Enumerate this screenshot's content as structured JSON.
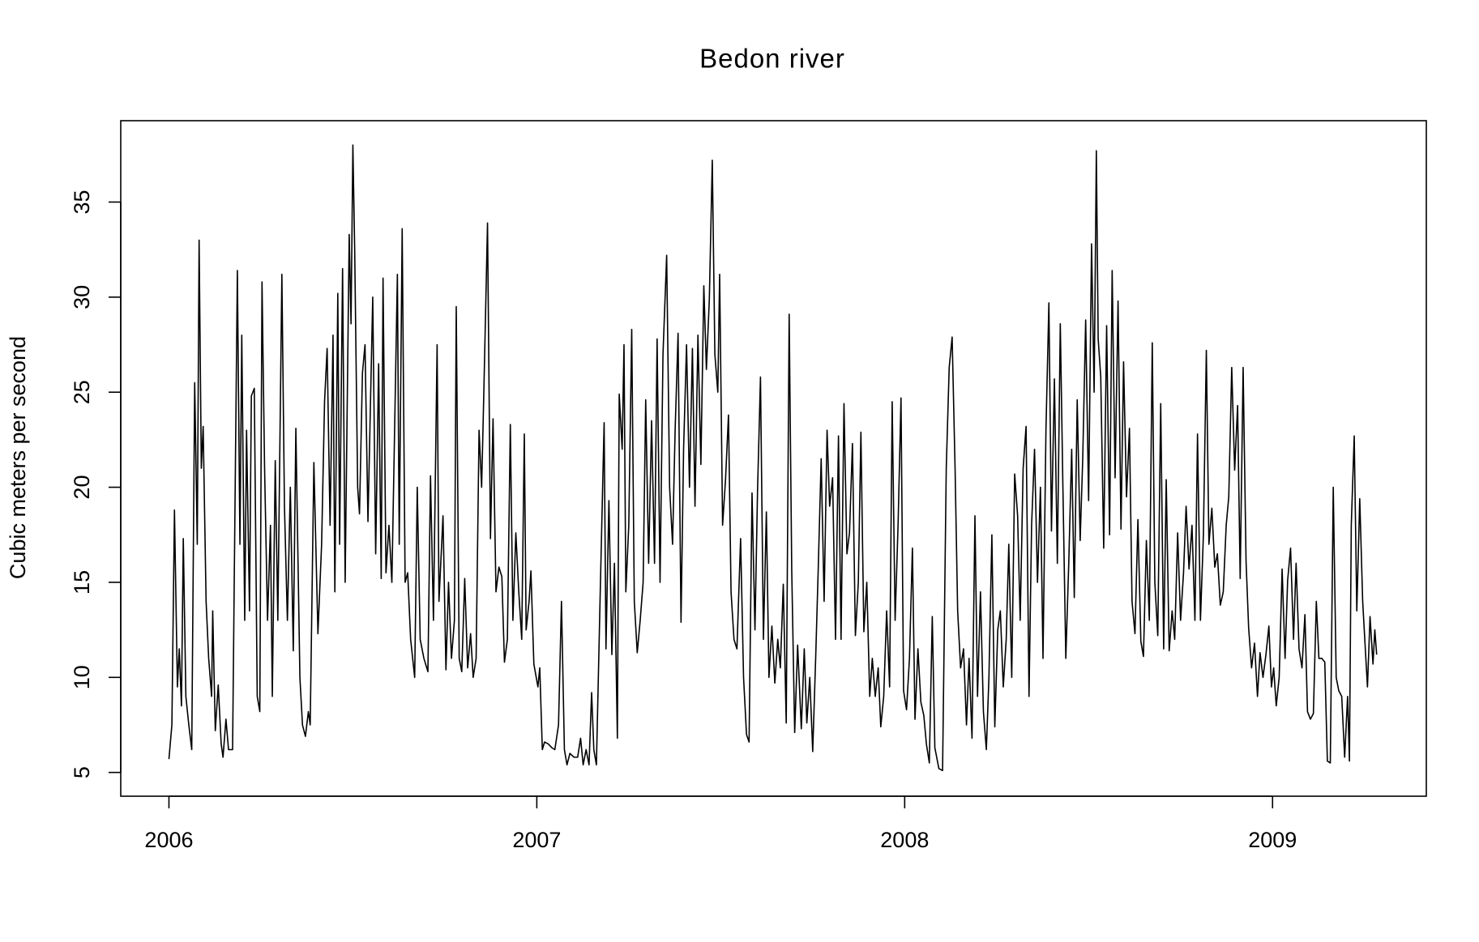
{
  "chart_data": {
    "type": "line",
    "title": "Bedon river",
    "y_label": "Cubic meters per second",
    "color": "#000000",
    "xlim": [
      2005.869,
      2009.418
    ],
    "ylim": [
      3.75,
      39.28
    ],
    "xticks": [
      2006,
      2007,
      2008,
      2009
    ],
    "yticks": [
      5,
      10,
      15,
      20,
      25,
      30,
      35
    ],
    "x": [
      2006.0,
      2006.008,
      2006.015,
      2006.023,
      2006.028,
      2006.034,
      2006.039,
      2006.046,
      2006.054,
      2006.062,
      2006.07,
      2006.077,
      2006.082,
      2006.088,
      2006.093,
      2006.101,
      2006.108,
      2006.116,
      2006.119,
      2006.126,
      2006.134,
      2006.142,
      2006.147,
      2006.155,
      2006.162,
      2006.173,
      2006.178,
      2006.186,
      2006.193,
      2006.198,
      2006.206,
      2006.211,
      2006.219,
      2006.224,
      2006.232,
      2006.24,
      2006.247,
      2006.253,
      2006.26,
      2006.268,
      2006.276,
      2006.281,
      2006.289,
      2006.296,
      2006.307,
      2006.314,
      2006.322,
      2006.33,
      2006.338,
      2006.345,
      2006.356,
      2006.363,
      2006.371,
      2006.379,
      2006.384,
      2006.394,
      2006.405,
      2006.415,
      2006.423,
      2006.43,
      2006.438,
      2006.446,
      2006.451,
      2006.459,
      2006.464,
      2006.472,
      2006.479,
      2006.49,
      2006.495,
      2006.5,
      2006.505,
      2006.513,
      2006.518,
      2006.526,
      2006.533,
      2006.541,
      2006.554,
      2006.562,
      2006.57,
      2006.577,
      2006.582,
      2006.59,
      2006.598,
      2006.606,
      2006.621,
      2006.626,
      2006.634,
      2006.642,
      2006.649,
      2006.657,
      2006.668,
      2006.675,
      2006.683,
      2006.693,
      2006.704,
      2006.711,
      2006.719,
      2006.729,
      2006.734,
      2006.745,
      2006.753,
      2006.76,
      2006.768,
      2006.776,
      2006.781,
      2006.789,
      2006.796,
      2006.804,
      2006.812,
      2006.82,
      2006.827,
      2006.835,
      2006.843,
      2006.85,
      2006.856,
      2006.866,
      2006.874,
      2006.881,
      2006.889,
      2006.897,
      2006.905,
      2006.912,
      2006.92,
      2006.928,
      2006.935,
      2006.943,
      2006.951,
      2006.959,
      2006.966,
      2006.971,
      2006.979,
      2006.984,
      2006.992,
      2007.003,
      2007.008,
      2007.015,
      2007.021,
      2007.031,
      2007.041,
      2007.049,
      2007.059,
      2007.067,
      2007.075,
      2007.082,
      2007.09,
      2007.101,
      2007.111,
      2007.119,
      2007.126,
      2007.134,
      2007.142,
      2007.149,
      2007.155,
      2007.162,
      2007.173,
      2007.183,
      2007.188,
      2007.196,
      2007.204,
      2007.211,
      2007.219,
      2007.224,
      2007.232,
      2007.237,
      2007.242,
      2007.25,
      2007.258,
      2007.265,
      2007.273,
      2007.281,
      2007.289,
      2007.296,
      2007.304,
      2007.312,
      2007.32,
      2007.327,
      2007.335,
      2007.343,
      2007.353,
      2007.361,
      2007.369,
      2007.376,
      2007.384,
      2007.392,
      2007.399,
      2007.407,
      2007.415,
      2007.423,
      2007.43,
      2007.438,
      2007.446,
      2007.454,
      2007.461,
      2007.469,
      2007.477,
      2007.484,
      2007.492,
      2007.497,
      2007.505,
      2007.513,
      2007.521,
      2007.528,
      2007.536,
      2007.544,
      2007.554,
      2007.562,
      2007.57,
      2007.577,
      2007.585,
      2007.593,
      2007.6,
      2007.608,
      2007.616,
      2007.624,
      2007.631,
      2007.639,
      2007.647,
      2007.655,
      2007.662,
      2007.67,
      2007.678,
      2007.686,
      2007.693,
      2007.701,
      2007.709,
      2007.719,
      2007.727,
      2007.734,
      2007.742,
      2007.75,
      2007.758,
      2007.765,
      2007.773,
      2007.781,
      2007.789,
      2007.796,
      2007.804,
      2007.812,
      2007.82,
      2007.827,
      2007.835,
      2007.843,
      2007.85,
      2007.858,
      2007.866,
      2007.874,
      2007.881,
      2007.889,
      2007.897,
      2007.905,
      2007.912,
      2007.92,
      2007.928,
      2007.935,
      2007.943,
      2007.951,
      2007.959,
      2007.966,
      2007.974,
      2007.982,
      2007.99,
      2007.997,
      2008.005,
      2008.013,
      2008.021,
      2008.028,
      2008.036,
      2008.044,
      2008.052,
      2008.059,
      2008.067,
      2008.075,
      2008.082,
      2008.093,
      2008.103,
      2008.113,
      2008.121,
      2008.129,
      2008.137,
      2008.144,
      2008.152,
      2008.16,
      2008.168,
      2008.175,
      2008.183,
      2008.191,
      2008.198,
      2008.206,
      2008.214,
      2008.222,
      2008.229,
      2008.237,
      2008.245,
      2008.253,
      2008.26,
      2008.268,
      2008.276,
      2008.283,
      2008.291,
      2008.299,
      2008.307,
      2008.314,
      2008.322,
      2008.33,
      2008.338,
      2008.345,
      2008.353,
      2008.361,
      2008.369,
      2008.376,
      2008.384,
      2008.392,
      2008.399,
      2008.407,
      2008.415,
      2008.423,
      2008.43,
      2008.438,
      2008.446,
      2008.454,
      2008.461,
      2008.469,
      2008.477,
      2008.484,
      2008.492,
      2008.5,
      2008.508,
      2008.515,
      2008.521,
      2008.526,
      2008.533,
      2008.541,
      2008.549,
      2008.557,
      2008.564,
      2008.572,
      2008.58,
      2008.588,
      2008.595,
      2008.603,
      2008.611,
      2008.618,
      2008.626,
      2008.634,
      2008.642,
      2008.649,
      2008.657,
      2008.665,
      2008.673,
      2008.68,
      2008.688,
      2008.696,
      2008.704,
      2008.711,
      2008.719,
      2008.727,
      2008.734,
      2008.742,
      2008.75,
      2008.758,
      2008.765,
      2008.773,
      2008.781,
      2008.789,
      2008.796,
      2008.804,
      2008.812,
      2008.82,
      2008.827,
      2008.835,
      2008.843,
      2008.85,
      2008.858,
      2008.866,
      2008.874,
      2008.881,
      2008.889,
      2008.897,
      2008.905,
      2008.912,
      2008.92,
      2008.928,
      2008.935,
      2008.943,
      2008.951,
      2008.959,
      2008.966,
      2008.974,
      2008.982,
      2008.99,
      2008.997,
      2009.003,
      2009.01,
      2009.018,
      2009.026,
      2009.034,
      2009.041,
      2009.049,
      2009.057,
      2009.064,
      2009.072,
      2009.08,
      2009.088,
      2009.095,
      2009.103,
      2009.111,
      2009.119,
      2009.126,
      2009.134,
      2009.142,
      2009.149,
      2009.157,
      2009.165,
      2009.173,
      2009.18,
      2009.188,
      2009.196,
      2009.204,
      2009.209,
      2009.214,
      2009.222,
      2009.229,
      2009.237,
      2009.245,
      2009.253,
      2009.258,
      2009.265,
      2009.273,
      2009.278,
      2009.283
    ],
    "values": [
      5.7,
      7.5,
      18.8,
      9.5,
      11.5,
      8.5,
      17.3,
      9,
      7.5,
      6.2,
      25.5,
      17,
      33,
      21,
      23.2,
      14,
      11,
      9,
      13.5,
      7.2,
      9.6,
      6.5,
      5.8,
      7.8,
      6.2,
      6.2,
      16,
      31.4,
      17,
      28,
      13,
      23,
      13.5,
      24.8,
      25.2,
      9,
      8.2,
      30.8,
      21,
      13,
      18,
      9,
      21.4,
      13,
      31.2,
      19,
      13,
      20,
      11.4,
      23.1,
      10,
      7.5,
      6.9,
      8.2,
      7.5,
      21.3,
      12.3,
      17,
      24.5,
      27.3,
      18,
      28,
      14.5,
      30.2,
      17,
      31.5,
      15,
      33.3,
      28.6,
      38,
      32.4,
      20,
      18.6,
      26,
      27.5,
      18.2,
      30,
      16.5,
      26.5,
      15.2,
      31,
      15.5,
      18,
      15,
      31.2,
      17,
      33.6,
      15,
      15.5,
      12,
      10,
      20,
      12,
      11,
      10.3,
      20.6,
      13,
      27.5,
      14,
      18.5,
      10.4,
      15,
      11,
      13,
      29.5,
      11,
      10.3,
      15.2,
      10.5,
      12.3,
      10,
      11,
      23,
      20,
      25,
      33.9,
      17.3,
      23.6,
      14.5,
      15.8,
      15.3,
      10.8,
      12,
      23.3,
      13,
      17.6,
      14.5,
      12,
      22.8,
      12.5,
      14,
      15.6,
      10.7,
      9.5,
      10.5,
      6.2,
      6.6,
      6.5,
      6.3,
      6.2,
      7.5,
      14,
      6.2,
      5.4,
      6,
      5.8,
      5.8,
      6.8,
      5.4,
      6.2,
      5.4,
      9.2,
      6.2,
      5.4,
      15,
      23.4,
      11.5,
      19.3,
      11.2,
      16,
      6.8,
      24.9,
      22,
      27.5,
      14.5,
      18,
      28.3,
      14,
      11.3,
      13,
      15,
      24.6,
      16,
      23.5,
      16,
      27.8,
      15,
      27,
      32.2,
      20,
      17,
      23,
      28.1,
      12.9,
      22,
      27.5,
      20,
      27.3,
      19,
      28,
      21.2,
      30.6,
      26.2,
      29.9,
      37.2,
      27,
      25,
      31.2,
      18,
      20.4,
      23.8,
      14.5,
      12,
      11.5,
      17.3,
      10,
      7,
      6.6,
      19.7,
      12.5,
      19.8,
      25.8,
      12,
      18.7,
      10,
      12.7,
      9.7,
      12,
      10.5,
      14.9,
      7.6,
      29.1,
      15.6,
      7.1,
      11.7,
      7.3,
      11.5,
      7.6,
      10,
      6.1,
      11,
      15.7,
      21.5,
      14,
      23,
      19,
      20.5,
      12,
      22.7,
      12,
      24.4,
      16.5,
      17.6,
      22.3,
      12.2,
      15,
      22.9,
      12.4,
      15,
      9,
      11,
      9,
      10.5,
      7.4,
      9,
      13.5,
      9.5,
      24.5,
      13,
      18,
      24.7,
      9.3,
      8.3,
      11,
      16.8,
      7.8,
      11.5,
      8.7,
      8,
      6.5,
      5.5,
      13.2,
      6.3,
      5.2,
      5.1,
      21,
      26.3,
      27.9,
      21,
      13.5,
      10.5,
      11.5,
      7.5,
      11,
      6.8,
      18.5,
      9,
      14.5,
      8.2,
      6.2,
      10,
      17.5,
      7.4,
      12.5,
      13.5,
      9.5,
      12,
      17,
      10,
      20.7,
      18.5,
      13,
      21,
      23.2,
      9,
      18,
      22,
      15,
      20,
      11,
      23,
      29.7,
      17.7,
      25.7,
      16,
      28.6,
      20.1,
      11,
      16,
      22,
      14.2,
      24.6,
      17.2,
      21.5,
      28.8,
      19.3,
      32.8,
      25,
      37.7,
      27.8,
      25.8,
      16.8,
      28.5,
      17.5,
      31.4,
      20.5,
      29.8,
      17.8,
      26.6,
      19.5,
      23.1,
      14,
      12.3,
      18.3,
      11.9,
      11.1,
      17.2,
      13,
      27.6,
      15,
      12.2,
      24.4,
      11.5,
      20.4,
      11.4,
      13.5,
      12,
      17.6,
      13,
      15.5,
      19,
      15.7,
      18,
      13,
      22.8,
      13,
      17.5,
      27.2,
      17,
      18.9,
      15.8,
      16.5,
      13.8,
      14.5,
      18,
      19.5,
      26.3,
      20.9,
      24.3,
      15.2,
      26.3,
      16.1,
      12.6,
      10.5,
      11.8,
      9,
      11.3,
      10,
      11.2,
      12.7,
      9.5,
      10.5,
      8.5,
      10,
      15.7,
      11,
      15.1,
      16.8,
      12,
      16,
      11.5,
      10.5,
      13.3,
      8.2,
      7.8,
      8.1,
      14,
      11,
      11,
      10.8,
      5.6,
      5.5,
      20,
      10,
      9.3,
      9,
      5.8,
      9,
      5.6,
      18,
      22.7,
      13.5,
      19.4,
      14,
      11.2,
      9.5,
      13.2,
      10.7,
      12.5,
      11.2
    ]
  }
}
